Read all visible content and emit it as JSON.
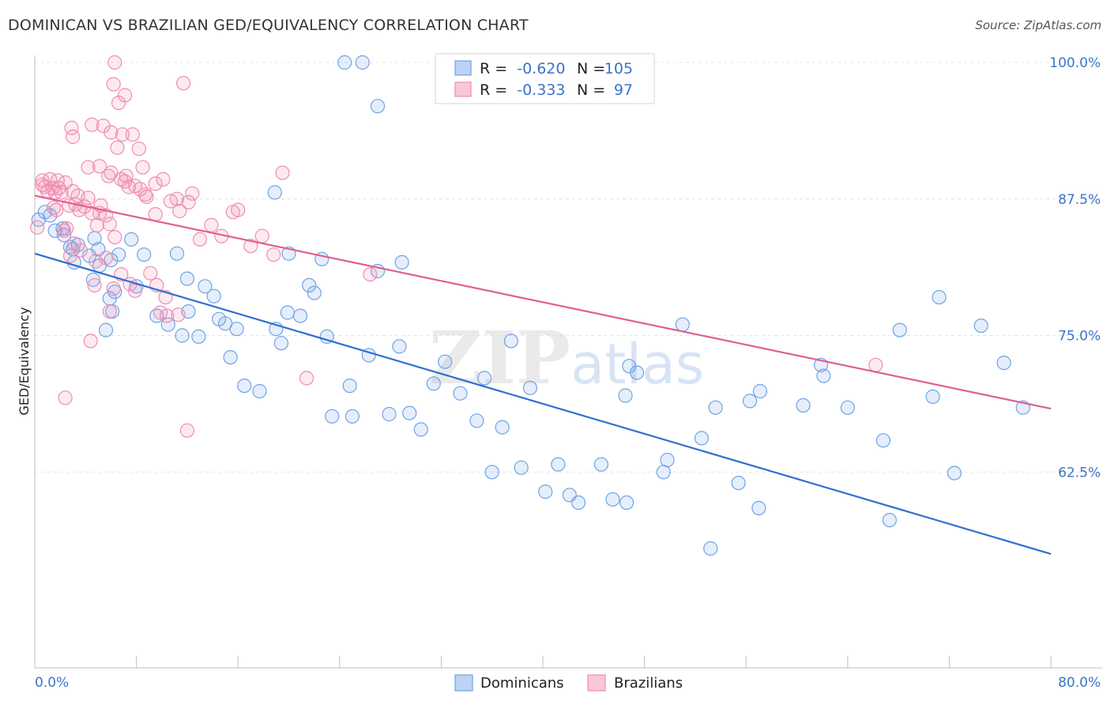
{
  "title": "DOMINICAN VS BRAZILIAN GED/EQUIVALENCY CORRELATION CHART",
  "source": "Source: ZipAtlas.com",
  "watermark": "ZIPatlas",
  "legend": {
    "rows": [
      {
        "r_label": "R =",
        "r_value": "-0.620",
        "n_label": "N =",
        "n_value": "105",
        "color": "#6fa3e6"
      },
      {
        "r_label": "R =",
        "r_value": "-0.333",
        "n_label": "N =",
        "n_value": "97",
        "color": "#f08db0"
      }
    ]
  },
  "bottom_legend": [
    "Dominicans",
    "Brazilians"
  ],
  "chart_data": {
    "type": "scatter",
    "title": "DOMINICAN VS BRAZILIAN GED/EQUIVALENCY CORRELATION CHART",
    "xlabel": "",
    "ylabel": "GED/Equivalency",
    "xlim": [
      0,
      80
    ],
    "ylim": [
      50,
      100
    ],
    "x_tick_labels": [
      "0.0%",
      "80.0%"
    ],
    "y_ticks": [
      62.5,
      75.0,
      87.5,
      100.0
    ],
    "y_tick_labels": [
      "62.5%",
      "75.0%",
      "87.5%",
      "100.0%"
    ],
    "grid": "horizontal dashed",
    "legend_position": "top-center",
    "series": [
      {
        "name": "Dominicans",
        "color": "#6fa3e6",
        "line_color": "#2f6fd1",
        "r": -0.62,
        "n": 105,
        "trend": {
          "x": [
            0,
            80
          ],
          "y": [
            82.5,
            55.0
          ]
        },
        "points": [
          [
            0.3,
            85.6
          ],
          [
            0.8,
            86.3
          ],
          [
            1.2,
            86.0
          ],
          [
            1.6,
            84.6
          ],
          [
            2.2,
            84.8
          ],
          [
            2.3,
            84.2
          ],
          [
            2.8,
            83.1
          ],
          [
            3.0,
            82.9
          ],
          [
            3.4,
            83.3
          ],
          [
            3.1,
            81.7
          ],
          [
            4.3,
            82.3
          ],
          [
            4.7,
            83.9
          ],
          [
            5.0,
            82.9
          ],
          [
            5.1,
            81.4
          ],
          [
            6.0,
            81.9
          ],
          [
            6.6,
            82.4
          ],
          [
            7.6,
            83.8
          ],
          [
            8.6,
            82.4
          ],
          [
            8.0,
            79.5
          ],
          [
            4.6,
            80.1
          ],
          [
            5.9,
            78.4
          ],
          [
            6.3,
            79.0
          ],
          [
            5.6,
            75.5
          ],
          [
            6.1,
            77.2
          ],
          [
            9.6,
            76.8
          ],
          [
            10.5,
            76.0
          ],
          [
            11.2,
            82.5
          ],
          [
            11.6,
            75.0
          ],
          [
            12.1,
            77.2
          ],
          [
            12.9,
            74.9
          ],
          [
            13.4,
            79.5
          ],
          [
            14.1,
            78.6
          ],
          [
            14.5,
            76.5
          ],
          [
            15.0,
            76.1
          ],
          [
            15.9,
            75.6
          ],
          [
            15.4,
            73.0
          ],
          [
            16.5,
            70.4
          ],
          [
            17.7,
            69.9
          ],
          [
            19.4,
            74.3
          ],
          [
            19.9,
            77.1
          ],
          [
            20.9,
            76.8
          ],
          [
            21.6,
            79.6
          ],
          [
            22.0,
            78.9
          ],
          [
            23.4,
            67.6
          ],
          [
            24.8,
            70.4
          ],
          [
            26.3,
            73.2
          ],
          [
            27.0,
            80.9
          ],
          [
            27.9,
            67.8
          ],
          [
            28.7,
            74.0
          ],
          [
            29.5,
            67.9
          ],
          [
            30.4,
            66.4
          ],
          [
            31.4,
            70.6
          ],
          [
            32.3,
            72.6
          ],
          [
            33.5,
            69.7
          ],
          [
            34.8,
            67.2
          ],
          [
            35.4,
            71.1
          ],
          [
            36.8,
            66.6
          ],
          [
            37.5,
            74.5
          ],
          [
            38.3,
            62.9
          ],
          [
            39.0,
            70.2
          ],
          [
            41.2,
            63.2
          ],
          [
            42.1,
            60.4
          ],
          [
            44.6,
            63.2
          ],
          [
            45.5,
            60.0
          ],
          [
            46.5,
            69.5
          ],
          [
            46.8,
            72.2
          ],
          [
            47.4,
            71.6
          ],
          [
            49.8,
            63.6
          ],
          [
            49.5,
            62.5
          ],
          [
            51.0,
            76.0
          ],
          [
            52.5,
            65.6
          ],
          [
            53.6,
            68.4
          ],
          [
            55.4,
            61.5
          ],
          [
            56.3,
            69.0
          ],
          [
            57.1,
            69.9
          ],
          [
            60.5,
            68.6
          ],
          [
            61.9,
            72.3
          ],
          [
            62.1,
            71.3
          ],
          [
            64.0,
            68.4
          ],
          [
            66.8,
            65.4
          ],
          [
            68.1,
            75.5
          ],
          [
            70.7,
            69.4
          ],
          [
            72.4,
            62.4
          ],
          [
            71.2,
            78.5
          ],
          [
            74.5,
            75.9
          ],
          [
            76.3,
            72.5
          ],
          [
            77.8,
            68.4
          ],
          [
            67.3,
            58.1
          ],
          [
            57.0,
            59.2
          ],
          [
            53.2,
            55.5
          ],
          [
            46.6,
            59.7
          ],
          [
            42.8,
            59.7
          ],
          [
            40.2,
            60.7
          ],
          [
            36.0,
            62.5
          ],
          [
            25.0,
            67.6
          ],
          [
            23.0,
            74.9
          ],
          [
            20.0,
            82.5
          ],
          [
            19.0,
            75.6
          ],
          [
            12.0,
            80.2
          ],
          [
            24.4,
            100.0
          ],
          [
            25.8,
            100.0
          ],
          [
            27.0,
            96.0
          ],
          [
            18.9,
            88.1
          ],
          [
            22.6,
            82.0
          ],
          [
            28.9,
            81.7
          ]
        ]
      },
      {
        "name": "Brazilians",
        "color": "#f08db0",
        "line_color": "#e0608f",
        "r": -0.333,
        "n": 97,
        "trend": {
          "x": [
            0,
            80
          ],
          "y": [
            87.8,
            68.3
          ]
        },
        "points": [
          [
            0.2,
            84.9
          ],
          [
            0.6,
            88.8
          ],
          [
            0.6,
            89.2
          ],
          [
            0.8,
            88.6
          ],
          [
            1.2,
            89.3
          ],
          [
            1.4,
            88.5
          ],
          [
            1.6,
            88.1
          ],
          [
            1.9,
            88.5
          ],
          [
            1.7,
            86.5
          ],
          [
            2.1,
            88.1
          ],
          [
            2.4,
            89.0
          ],
          [
            2.7,
            86.9
          ],
          [
            3.0,
            88.2
          ],
          [
            3.2,
            87.0
          ],
          [
            3.5,
            86.5
          ],
          [
            3.9,
            86.8
          ],
          [
            4.2,
            87.6
          ],
          [
            4.5,
            86.2
          ],
          [
            4.9,
            85.1
          ],
          [
            5.2,
            86.9
          ],
          [
            5.6,
            86.0
          ],
          [
            5.9,
            85.2
          ],
          [
            6.3,
            84.0
          ],
          [
            6.8,
            89.3
          ],
          [
            7.1,
            89.1
          ],
          [
            7.4,
            88.6
          ],
          [
            7.9,
            88.7
          ],
          [
            8.3,
            88.4
          ],
          [
            8.8,
            87.7
          ],
          [
            9.5,
            86.1
          ],
          [
            10.1,
            89.3
          ],
          [
            10.7,
            87.3
          ],
          [
            11.4,
            86.4
          ],
          [
            12.1,
            87.2
          ],
          [
            13.0,
            83.8
          ],
          [
            13.9,
            85.1
          ],
          [
            14.7,
            84.1
          ],
          [
            15.6,
            86.3
          ],
          [
            16.0,
            86.5
          ],
          [
            17.0,
            83.2
          ],
          [
            17.9,
            84.1
          ],
          [
            18.8,
            82.4
          ],
          [
            19.5,
            89.9
          ],
          [
            6.5,
            92.2
          ],
          [
            6.9,
            93.4
          ],
          [
            7.7,
            93.4
          ],
          [
            8.2,
            92.1
          ],
          [
            6.0,
            93.6
          ],
          [
            5.8,
            89.6
          ],
          [
            5.1,
            90.5
          ],
          [
            4.2,
            90.4
          ],
          [
            3.0,
            93.2
          ],
          [
            2.9,
            94.0
          ],
          [
            4.5,
            94.3
          ],
          [
            5.4,
            94.2
          ],
          [
            6.2,
            98.0
          ],
          [
            6.6,
            96.3
          ],
          [
            7.1,
            97.0
          ],
          [
            6.3,
            100.0
          ],
          [
            11.7,
            98.1
          ],
          [
            2.5,
            84.8
          ],
          [
            3.1,
            83.4
          ],
          [
            3.6,
            82.8
          ],
          [
            2.8,
            82.3
          ],
          [
            4.8,
            81.8
          ],
          [
            5.6,
            82.1
          ],
          [
            4.7,
            79.6
          ],
          [
            6.2,
            79.3
          ],
          [
            6.8,
            80.6
          ],
          [
            7.5,
            79.7
          ],
          [
            9.1,
            80.7
          ],
          [
            9.6,
            79.6
          ],
          [
            10.3,
            78.5
          ],
          [
            9.9,
            77.1
          ],
          [
            10.4,
            76.8
          ],
          [
            11.3,
            76.9
          ],
          [
            5.9,
            77.2
          ],
          [
            4.4,
            74.5
          ],
          [
            7.9,
            79.1
          ],
          [
            2.4,
            69.3
          ],
          [
            12.0,
            66.3
          ],
          [
            21.4,
            71.1
          ],
          [
            26.4,
            80.6
          ],
          [
            66.2,
            72.3
          ],
          [
            8.7,
            87.9
          ],
          [
            11.2,
            87.5
          ],
          [
            2.3,
            84.6
          ],
          [
            1.0,
            88.2
          ],
          [
            1.5,
            86.7
          ],
          [
            3.4,
            87.8
          ],
          [
            9.5,
            88.9
          ],
          [
            12.4,
            88.0
          ],
          [
            5.1,
            86.2
          ],
          [
            6.0,
            89.9
          ],
          [
            7.2,
            89.6
          ],
          [
            8.5,
            90.4
          ],
          [
            1.8,
            89.2
          ]
        ]
      }
    ]
  }
}
